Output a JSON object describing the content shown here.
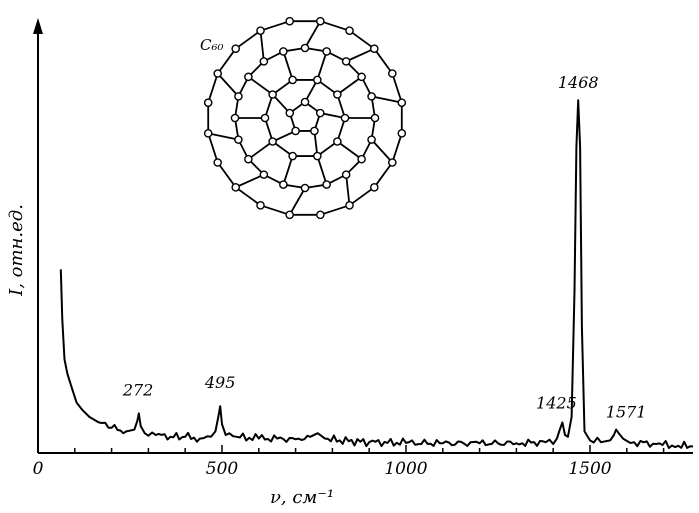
{
  "chart_data": {
    "type": "line",
    "title": "",
    "xlabel": "ν, см⁻¹",
    "ylabel": "I, отн.ед.",
    "xlim": [
      0,
      1780
    ],
    "ylim": [
      0,
      1.0
    ],
    "x_ticks": [
      0,
      500,
      1000,
      1500
    ],
    "x_tick_labels": [
      "0",
      "500",
      "1000",
      "1500"
    ],
    "y_ticks": [],
    "grid": false,
    "legend": "none",
    "series": [
      {
        "color": "#000000",
        "x": [
          62,
          66,
          72,
          80,
          92,
          105,
          120,
          140,
          165,
          200,
          240,
          262,
          270,
          274,
          279,
          290,
          320,
          360,
          400,
          440,
          470,
          482,
          490,
          495,
          500,
          510,
          540,
          600,
          650,
          700,
          740,
          760,
          780,
          820,
          900,
          1000,
          1100,
          1200,
          1300,
          1380,
          1410,
          1418,
          1425,
          1432,
          1440,
          1450,
          1458,
          1463,
          1468,
          1473,
          1478,
          1485,
          1500,
          1530,
          1555,
          1565,
          1571,
          1578,
          1590,
          1620,
          1680,
          1740,
          1780
        ],
        "y": [
          0.51,
          0.37,
          0.26,
          0.22,
          0.18,
          0.14,
          0.12,
          0.1,
          0.085,
          0.07,
          0.06,
          0.065,
          0.09,
          0.11,
          0.075,
          0.055,
          0.05,
          0.045,
          0.045,
          0.04,
          0.045,
          0.06,
          0.1,
          0.13,
          0.08,
          0.05,
          0.045,
          0.04,
          0.04,
          0.038,
          0.045,
          0.055,
          0.04,
          0.035,
          0.03,
          0.028,
          0.027,
          0.027,
          0.027,
          0.03,
          0.04,
          0.065,
          0.085,
          0.05,
          0.045,
          0.1,
          0.45,
          0.85,
          0.98,
          0.85,
          0.35,
          0.06,
          0.035,
          0.03,
          0.035,
          0.05,
          0.065,
          0.055,
          0.04,
          0.03,
          0.025,
          0.02,
          0.018
        ]
      }
    ],
    "annotations": [
      {
        "text": "272",
        "x": 272,
        "y": 0.11
      },
      {
        "text": "495",
        "x": 495,
        "y": 0.13
      },
      {
        "text": "1425",
        "x": 1425,
        "y": 0.085
      },
      {
        "text": "1468",
        "x": 1468,
        "y": 0.98
      },
      {
        "text": "1571",
        "x": 1571,
        "y": 0.065
      }
    ],
    "inset_label": "C₆₀"
  }
}
